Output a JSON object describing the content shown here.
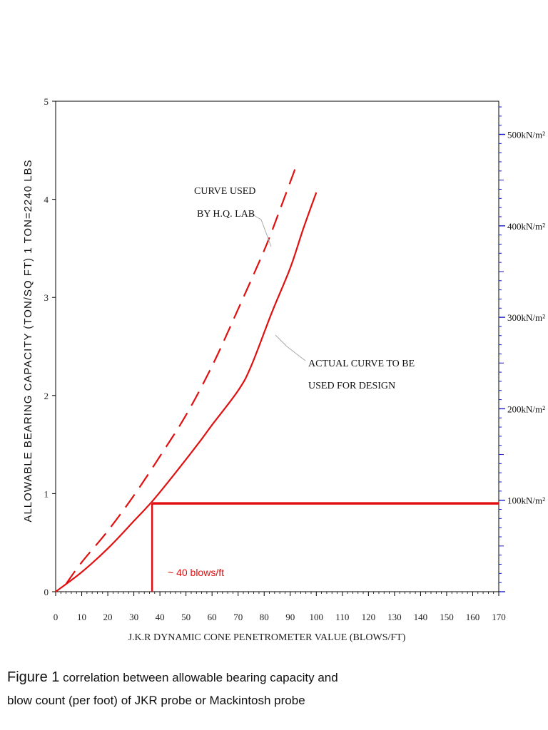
{
  "chart_data": {
    "type": "line",
    "xlabel": "J.K.R DYNAMIC CONE PENETROMETER VALUE (BLOWS/FT)",
    "ylabel": "ALLOWABLE BEARING CAPACITY  (TON/SQ FT)   1 TON=2240 LBS",
    "xlim": [
      0,
      170
    ],
    "ylim": [
      0,
      5
    ],
    "x_ticks": [
      "0",
      "10",
      "20",
      "30",
      "40",
      "50",
      "60",
      "70",
      "80",
      "90",
      "100",
      "110",
      "120",
      "130",
      "140",
      "150",
      "160",
      "170"
    ],
    "y_ticks": [
      "0",
      "1",
      "2",
      "3",
      "4",
      "5"
    ],
    "right_axis": {
      "color": "#1a1acc",
      "labels": [
        {
          "value": 100,
          "text": "100kN/m²"
        },
        {
          "value": 200,
          "text": "200kN/m²"
        },
        {
          "value": 300,
          "text": "300kN/m²"
        },
        {
          "value": 400,
          "text": "400kN/m²"
        },
        {
          "value": 500,
          "text": "500kN/m²"
        }
      ]
    },
    "series": [
      {
        "name": "CURVE USED BY H.Q. LAB",
        "style": "dashed",
        "color": "#e01010",
        "x": [
          4,
          10,
          20,
          30,
          40,
          50,
          60,
          70,
          80,
          85,
          92
        ],
        "y": [
          0.08,
          0.3,
          0.62,
          0.98,
          1.38,
          1.8,
          2.3,
          2.88,
          3.48,
          3.82,
          4.32
        ]
      },
      {
        "name": "ACTUAL CURVE TO BE USED FOR DESIGN",
        "style": "solid",
        "color": "#e01010",
        "x": [
          0,
          10,
          20,
          30,
          37,
          45,
          55,
          60,
          70,
          75,
          83,
          90,
          95,
          100
        ],
        "y": [
          0,
          0.2,
          0.44,
          0.72,
          0.92,
          1.18,
          1.52,
          1.7,
          2.05,
          2.3,
          2.85,
          3.3,
          3.7,
          4.07
        ]
      }
    ],
    "reference_lines": {
      "color": "#e01010",
      "horizontal_y": 0.9,
      "horizontal_x_from": 37,
      "horizontal_x_to": 170,
      "vertical_x": 37,
      "vertical_y_from": 0,
      "vertical_y_to": 0.9
    },
    "annotations": [
      {
        "line1": "CURVE USED",
        "line2": "BY H.Q. LAB"
      },
      {
        "line1": "ACTUAL CURVE TO BE",
        "line2": "USED FOR DESIGN"
      },
      {
        "text": "~ 40 blows/ft"
      }
    ]
  },
  "caption": {
    "figure": "Figure 1",
    "text_line1": " correlation between allowable bearing capacity and",
    "text_line2": "blow count (per foot) of JKR probe or Mackintosh probe"
  }
}
